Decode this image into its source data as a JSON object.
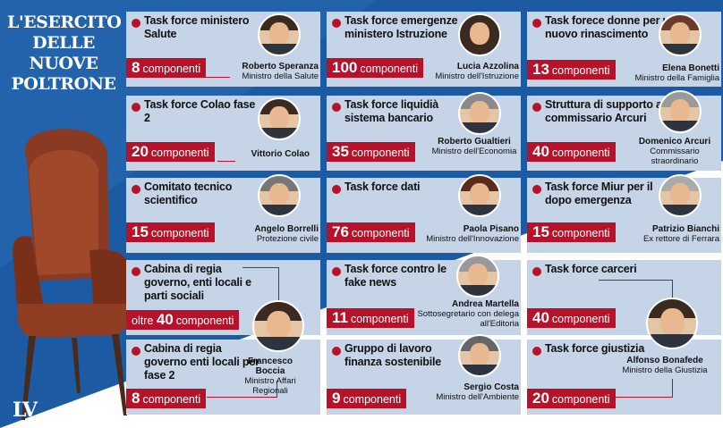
{
  "title": [
    "L'ESERCITO",
    "DELLE",
    "NUOVE",
    "POLTRONE"
  ],
  "logo": "LV",
  "colors": {
    "blue": "#1c5aa3",
    "red": "#b8122a",
    "card": "#c5d4e6"
  },
  "cards": [
    {
      "title": "Task force ministero Salute",
      "count": "8",
      "label": "componenti",
      "name": "Roberto Speranza",
      "role": "Ministro della Salute"
    },
    {
      "title": "Task force emergenze ministero Istruzione",
      "count": "100",
      "label": "componenti",
      "name": "Lucia Azzolina",
      "role": "Ministro dell'Istruzione"
    },
    {
      "title": "Task forece donne per un nuovo rinascimento",
      "count": "13",
      "label": "componenti",
      "name": "Elena Bonetti",
      "role": "Ministro della Famiglia"
    },
    {
      "title": "Task force Colao fase 2",
      "count": "20",
      "label": "componenti",
      "name": "Vittorio Colao",
      "role": ""
    },
    {
      "title": "Task force liquidià sistema bancario",
      "count": "35",
      "label": "componenti",
      "name": "Roberto Gualtieri",
      "role": "Ministro dell'Economia"
    },
    {
      "title": "Struttura di supporto al commissario Arcuri",
      "count": "40",
      "label": "componenti",
      "name": "Domenico Arcuri",
      "role": "Commissario straordinario"
    },
    {
      "title": "Comitato tecnico scientifico",
      "count": "15",
      "label": "componenti",
      "name": "Angelo Borrelli",
      "role": "Protezione civile"
    },
    {
      "title": "Task force dati",
      "count": "76",
      "label": "componenti",
      "name": "Paola Pisano",
      "role": "Ministro dell'Innovazione"
    },
    {
      "title": "Task force Miur per il dopo emergenza",
      "count": "15",
      "label": "componenti",
      "name": "Patrizio Bianchi",
      "role": "Ex rettore di Ferrara"
    },
    {
      "title": "Cabina di regia governo, enti locali e parti sociali",
      "prefix": "oltre",
      "count": "40",
      "label": "componenti",
      "name": "Francesco Boccia",
      "role": "Ministro Affari Regionali"
    },
    {
      "title": "Task force contro le fake news",
      "count": "11",
      "label": "componenti",
      "name": "Andrea Martella",
      "role": "Sottosegretario con delega all'Editoria"
    },
    {
      "title": "Task force carceri",
      "count": "40",
      "label": "componenti",
      "name": "Alfonso Bonafede",
      "role": "Ministro della Giustizia"
    },
    {
      "title": "Cabina di regia governo enti locali per fase 2",
      "count": "8",
      "label": "componenti"
    },
    {
      "title": "Gruppo di lavoro finanza sostenibile",
      "count": "9",
      "label": "componenti",
      "name": "Sergio Costa",
      "role": "Ministro dell'Ambiente"
    },
    {
      "title": "Task force giustizia",
      "count": "20",
      "label": "componenti"
    }
  ]
}
